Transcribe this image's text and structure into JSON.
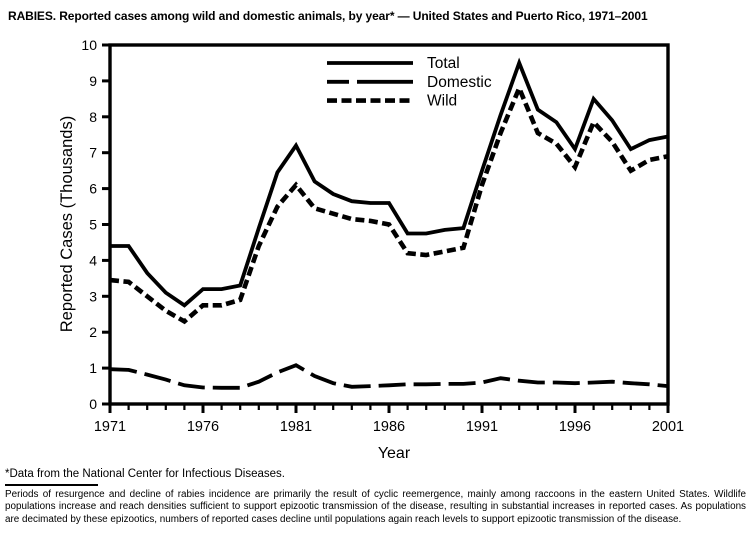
{
  "title": "RABIES. Reported cases among wild and domestic animals, by year* — United States and Puerto Rico, 1971–2001",
  "footnote": "*Data from the National Center for Infectious Diseases.",
  "note": "Periods of resurgence and decline of rabies incidence are primarily the result of cyclic reemergence, mainly among raccoons in the eastern United States. Wildlife populations increase and reach densities sufficient to support epizootic transmission of the disease, resulting in substantial increases in reported cases. As populations are decimated by these epizootics, numbers of reported cases decline until populations again reach levels to support epizootic transmission of the disease.",
  "chart_data": {
    "type": "line",
    "title": "RABIES. Reported cases among wild and domestic animals, by year — United States and Puerto Rico, 1971–2001",
    "xlabel": "Year",
    "ylabel": "Reported Cases (Thousands)",
    "xlim": [
      1971,
      2001
    ],
    "ylim": [
      0,
      10
    ],
    "grid": false,
    "legend_position": "top-center-inside",
    "line_color": "#000000",
    "x_major_ticks": [
      1971,
      1976,
      1981,
      1986,
      1991,
      1996,
      2001
    ],
    "x_minor_tick_interval": 1,
    "y_ticks": [
      0,
      1,
      2,
      3,
      4,
      5,
      6,
      7,
      8,
      9,
      10
    ],
    "x": [
      1971,
      1972,
      1973,
      1974,
      1975,
      1976,
      1977,
      1978,
      1979,
      1980,
      1981,
      1982,
      1983,
      1984,
      1985,
      1986,
      1987,
      1988,
      1989,
      1990,
      1991,
      1992,
      1993,
      1994,
      1995,
      1996,
      1997,
      1998,
      1999,
      2000,
      2001
    ],
    "series": [
      {
        "name": "Total",
        "line_style": "solid",
        "values": [
          4.4,
          4.4,
          3.65,
          3.1,
          2.75,
          3.2,
          3.2,
          3.3,
          4.9,
          6.45,
          7.2,
          6.2,
          5.85,
          5.65,
          5.6,
          5.6,
          4.75,
          4.75,
          4.85,
          4.9,
          6.5,
          8.05,
          9.5,
          8.2,
          7.85,
          7.1,
          8.5,
          7.9,
          7.1,
          7.35,
          7.45
        ]
      },
      {
        "name": "Domestic",
        "line_style": "long-dash",
        "values": [
          0.97,
          0.95,
          0.82,
          0.68,
          0.52,
          0.46,
          0.45,
          0.45,
          0.62,
          0.88,
          1.08,
          0.78,
          0.58,
          0.48,
          0.5,
          0.52,
          0.55,
          0.55,
          0.56,
          0.56,
          0.6,
          0.72,
          0.65,
          0.6,
          0.6,
          0.58,
          0.6,
          0.62,
          0.58,
          0.55,
          0.5
        ]
      },
      {
        "name": "Wild",
        "line_style": "short-dash",
        "values": [
          3.45,
          3.4,
          3.0,
          2.6,
          2.3,
          2.75,
          2.75,
          2.9,
          4.4,
          5.5,
          6.1,
          5.45,
          5.3,
          5.15,
          5.1,
          5.0,
          4.2,
          4.15,
          4.25,
          4.35,
          6.1,
          7.55,
          8.8,
          7.55,
          7.25,
          6.6,
          7.85,
          7.3,
          6.5,
          6.8,
          6.9
        ]
      }
    ]
  }
}
